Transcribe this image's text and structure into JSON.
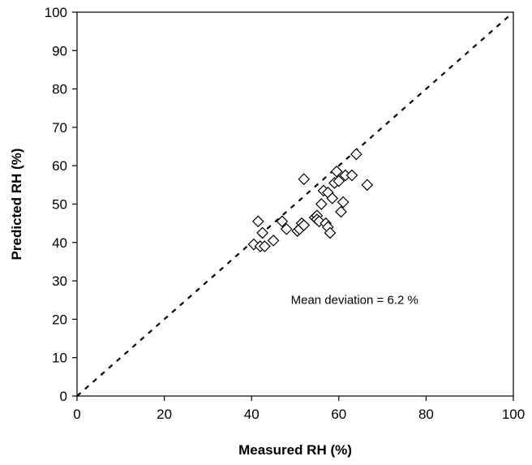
{
  "chart_data": {
    "type": "scatter",
    "title": "",
    "xlabel": "Measured RH (%)",
    "ylabel": "Predicted RH (%)",
    "xlim": [
      0,
      100
    ],
    "ylim": [
      0,
      100
    ],
    "x_ticks": [
      0,
      20,
      40,
      60,
      80,
      100
    ],
    "y_ticks": [
      0,
      10,
      20,
      30,
      40,
      50,
      60,
      70,
      80,
      90,
      100
    ],
    "grid": false,
    "legend": "none",
    "marker": "diamond-open",
    "reference_line": {
      "style": "dashed",
      "from": [
        0,
        0
      ],
      "to": [
        100,
        100
      ]
    },
    "annotation": "Mean deviation = 6.2 %",
    "annotation_position": {
      "x": 49,
      "y": 24
    },
    "series": [
      {
        "points": [
          [
            40.5,
            39.5
          ],
          [
            41.5,
            45.5
          ],
          [
            42.0,
            39.0
          ],
          [
            42.5,
            42.5
          ],
          [
            43.0,
            39.0
          ],
          [
            45.0,
            40.5
          ],
          [
            47.0,
            45.5
          ],
          [
            48.0,
            43.5
          ],
          [
            50.5,
            43.0
          ],
          [
            51.0,
            43.5
          ],
          [
            51.5,
            45.0
          ],
          [
            52.0,
            56.5
          ],
          [
            52.0,
            44.5
          ],
          [
            54.5,
            46.5
          ],
          [
            55.0,
            47.0
          ],
          [
            55.0,
            46.0
          ],
          [
            55.5,
            45.5
          ],
          [
            56.0,
            50.0
          ],
          [
            56.5,
            53.5
          ],
          [
            57.0,
            45.0
          ],
          [
            57.5,
            53.0
          ],
          [
            57.5,
            44.0
          ],
          [
            58.0,
            42.5
          ],
          [
            58.5,
            51.5
          ],
          [
            59.0,
            55.5
          ],
          [
            59.5,
            58.5
          ],
          [
            60.0,
            56.0
          ],
          [
            60.5,
            48.0
          ],
          [
            61.0,
            50.5
          ],
          [
            61.5,
            57.5
          ],
          [
            63.0,
            57.5
          ],
          [
            64.0,
            63.0
          ],
          [
            66.5,
            55.0
          ]
        ]
      }
    ]
  }
}
